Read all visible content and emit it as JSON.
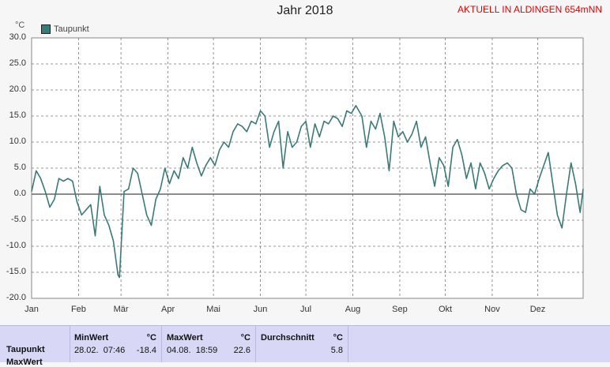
{
  "header": {
    "title": "Jahr 2018",
    "status": "AKTUELL IN ALDINGEN 654mNN"
  },
  "chart_data": {
    "type": "line",
    "title": "Jahr 2018",
    "ylabel": "°C",
    "ylim": [
      -20,
      30
    ],
    "yticks": [
      "30.0",
      "25.0",
      "20.0",
      "15.0",
      "10.0",
      "5.0",
      "0.0",
      "-5.0",
      "-10.0",
      "-15.0",
      "-20.0"
    ],
    "xticks": [
      "Jan",
      "Feb",
      "Mär",
      "Apr",
      "Mai",
      "Jun",
      "Jul",
      "Aug",
      "Sep",
      "Okt",
      "Nov",
      "Dez"
    ],
    "grid": true,
    "legend": "top-left",
    "color": "#3a7a78",
    "series": [
      {
        "name": "Taupunkt",
        "x": [
          1,
          4,
          7,
          10,
          13,
          16,
          19,
          22,
          25,
          28,
          31,
          34,
          37,
          40,
          43,
          46,
          49,
          52,
          55,
          58,
          59,
          62,
          65,
          68,
          71,
          74,
          77,
          80,
          83,
          86,
          89,
          92,
          95,
          98,
          101,
          104,
          107,
          110,
          113,
          116,
          119,
          122,
          125,
          128,
          131,
          134,
          137,
          140,
          143,
          146,
          149,
          152,
          155,
          158,
          161,
          164,
          167,
          170,
          173,
          176,
          179,
          182,
          185,
          188,
          191,
          194,
          197,
          200,
          203,
          206,
          209,
          212,
          215,
          216,
          219,
          222,
          225,
          228,
          231,
          234,
          237,
          240,
          243,
          246,
          249,
          252,
          255,
          258,
          261,
          264,
          267,
          270,
          273,
          276,
          279,
          282,
          285,
          288,
          291,
          294,
          297,
          300,
          303,
          306,
          309,
          312,
          315,
          318,
          321,
          324,
          327,
          330,
          333,
          336,
          339,
          342,
          345,
          348,
          351,
          354,
          357,
          360,
          363,
          365
        ],
        "values": [
          0.5,
          4.5,
          3.0,
          0.5,
          -2.5,
          -1.0,
          3.0,
          2.5,
          3.0,
          2.5,
          -1.5,
          -4.0,
          -3.0,
          -2.0,
          -8.0,
          1.5,
          -4.0,
          -6.0,
          -9.0,
          -15.5,
          -16.0,
          0.5,
          1.0,
          5.0,
          4.0,
          0.0,
          -4.0,
          -6.0,
          -1.0,
          1.0,
          5.0,
          2.0,
          4.5,
          3.0,
          7.0,
          5.0,
          9.0,
          6.0,
          3.5,
          5.5,
          7.0,
          5.5,
          8.5,
          10.0,
          9.0,
          12.0,
          13.5,
          13.0,
          12.0,
          14.0,
          13.5,
          16.0,
          15.0,
          9.0,
          12.0,
          14.0,
          5.0,
          12.0,
          9.0,
          10.0,
          13.0,
          14.0,
          9.0,
          13.5,
          11.0,
          14.0,
          13.5,
          15.0,
          14.5,
          13.0,
          16.0,
          15.5,
          17.0,
          16.5,
          15.0,
          9.0,
          14.0,
          12.5,
          15.5,
          11.0,
          4.5,
          14.0,
          11.0,
          12.0,
          10.0,
          11.5,
          14.0,
          9.0,
          11.0,
          6.0,
          1.5,
          7.0,
          5.5,
          1.5,
          9.0,
          10.5,
          7.5,
          3.0,
          6.0,
          1.0,
          6.0,
          4.0,
          1.0,
          3.0,
          4.5,
          5.5,
          6.0,
          5.0,
          0.0,
          -3.0,
          -3.5,
          1.0,
          0.0,
          3.0,
          5.5,
          8.0,
          2.0,
          -4.0,
          -6.5,
          0.0,
          6.0,
          2.0,
          -3.5,
          1.0
        ]
      }
    ]
  },
  "stats": {
    "row_label": "Taupunkt",
    "row_label_2": "MaxWert",
    "min": {
      "label": "MinWert",
      "unit": "°C",
      "datetime": "28.02.  07:46",
      "value": "-18.4"
    },
    "max": {
      "label": "MaxWert",
      "unit": "°C",
      "datetime": "04.08.  18:59",
      "value": "22.6"
    },
    "avg": {
      "label": "Durchschnitt",
      "unit": "°C",
      "value": "5.8"
    }
  }
}
